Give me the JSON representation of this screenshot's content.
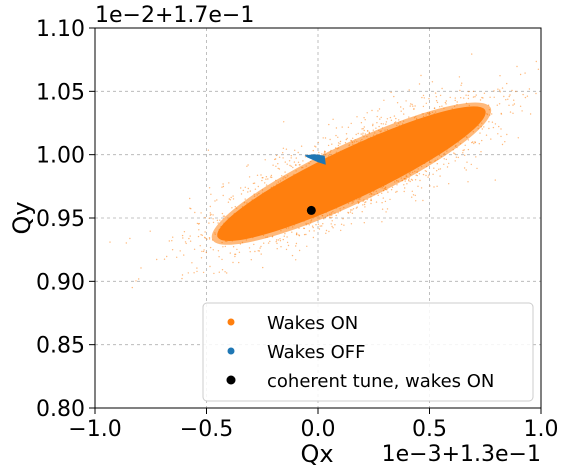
{
  "chart_data": {
    "type": "scatter",
    "title": "",
    "xlabel": "Qx",
    "ylabel": "Qy",
    "x_offset_label": "1e−3+1.3e−1",
    "y_offset_label": "1e−2+1.7e−1",
    "x_axis": {
      "offset": 0.13,
      "scale": 0.001,
      "lim": [
        -1.0,
        1.0
      ],
      "ticks": [
        -1.0,
        -0.5,
        0.0,
        0.5,
        1.0
      ],
      "tick_labels": [
        "−1.0",
        "−0.5",
        "0.0",
        "0.5",
        "1.0"
      ]
    },
    "y_axis": {
      "offset": 0.17,
      "scale": 0.01,
      "lim": [
        0.8,
        1.1
      ],
      "ticks": [
        0.8,
        0.85,
        0.9,
        0.95,
        1.0,
        1.05,
        1.1
      ],
      "tick_labels": [
        "0.80",
        "0.85",
        "0.90",
        "0.95",
        "1.00",
        "1.05",
        "1.10"
      ]
    },
    "grid": true,
    "legend_position": "lower-right",
    "series": [
      {
        "name": "Wakes ON",
        "color": "#ff7f0e",
        "marker": "dot",
        "distribution": {
          "description_only": false,
          "center": [
            0.17,
            0.99
          ],
          "major_axis_end_points": [
            [
              -0.45,
              0.935
            ],
            [
              0.75,
              1.035
            ]
          ],
          "half_width_y": 0.022,
          "halo_extent": [
            [
              -0.55,
              0.915
            ],
            [
              0.9,
              1.055
            ]
          ]
        }
      },
      {
        "name": "Wakes OFF",
        "color": "#1f77b4",
        "marker": "dot",
        "distribution": {
          "center": [
            -0.01,
            0.998
          ],
          "x_range": [
            -0.06,
            0.03
          ],
          "y_range": [
            0.992,
            1.0
          ]
        }
      },
      {
        "name": "coherent tune, wakes ON",
        "color": "#000000",
        "marker": "dot",
        "points": [
          {
            "x": -0.03,
            "y": 0.956
          }
        ]
      }
    ]
  }
}
